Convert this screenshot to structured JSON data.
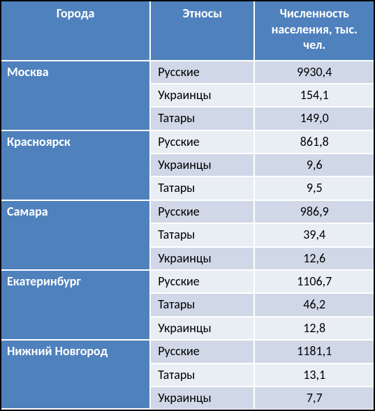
{
  "table": {
    "headers": {
      "city": "Города",
      "ethnos": "Этносы",
      "population": "Численность населения, тыс. чел."
    },
    "colors": {
      "header_bg": "#4f81bd",
      "header_text": "#ffffff",
      "row_bg_a": "#d0d8e8",
      "row_bg_b": "#e9edf4",
      "cell_text": "#000000",
      "inner_border": "#ffffff",
      "outer_border": "#000000"
    },
    "font_size_pt": 14,
    "cities": [
      {
        "name": "Москва",
        "rows": [
          {
            "ethnos": "Русские",
            "population": "9930,4"
          },
          {
            "ethnos": "Украинцы",
            "population": "154,1"
          },
          {
            "ethnos": "Татары",
            "population": "149,0"
          }
        ]
      },
      {
        "name": "Красноярск",
        "rows": [
          {
            "ethnos": "Русские",
            "population": "861,8"
          },
          {
            "ethnos": "Украинцы",
            "population": "9,6"
          },
          {
            "ethnos": "Татары",
            "population": "9,5"
          }
        ]
      },
      {
        "name": "Самара",
        "rows": [
          {
            "ethnos": "Русские",
            "population": "986,9"
          },
          {
            "ethnos": "Татары",
            "population": "39,4"
          },
          {
            "ethnos": "Украинцы",
            "population": "12,6"
          }
        ]
      },
      {
        "name": "Екатеринбург",
        "rows": [
          {
            "ethnos": "Русские",
            "population": "1106,7"
          },
          {
            "ethnos": "Татары",
            "population": "46,2"
          },
          {
            "ethnos": "Украинцы",
            "population": "12,8"
          }
        ]
      },
      {
        "name": "Нижний Новгород",
        "rows": [
          {
            "ethnos": "Русские",
            "population": "1181,1"
          },
          {
            "ethnos": "Татары",
            "population": "13,1"
          },
          {
            "ethnos": "Украинцы",
            "population": "7,7"
          }
        ]
      }
    ]
  }
}
